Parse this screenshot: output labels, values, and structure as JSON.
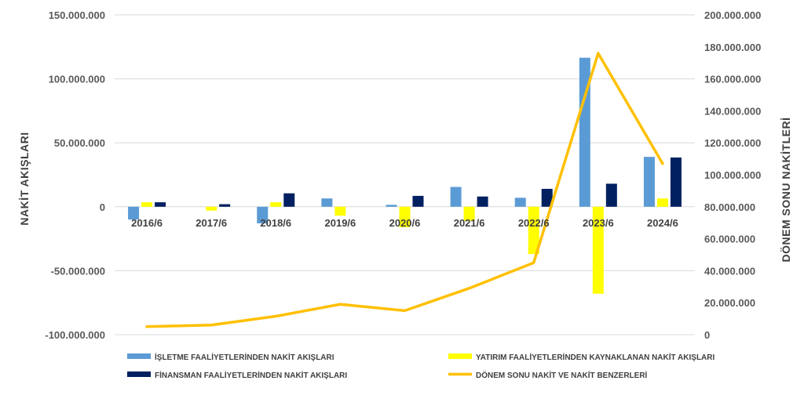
{
  "chart_data": {
    "type": "bar",
    "categories": [
      "2016/6",
      "2017/6",
      "2018/6",
      "2019/6",
      "2020/6",
      "2021/6",
      "2022/6",
      "2023/6",
      "2024/6"
    ],
    "series": [
      {
        "name": "İŞLETME FAALİYETLERİNDEN NAKİT AKIŞLARI",
        "axis": "left",
        "kind": "bar",
        "color": "#5B9BD5",
        "values": [
          -10000000,
          0,
          -13000000,
          6500000,
          1500000,
          15500000,
          7000000,
          116500000,
          39000000
        ]
      },
      {
        "name": "YATIRIM FAALİYETLERİNDEN KAYNAKLANAN NAKİT AKIŞLARI",
        "axis": "left",
        "kind": "bar",
        "color": "#FFFF00",
        "values": [
          3500000,
          -3000000,
          3500000,
          -7000000,
          -16000000,
          -11000000,
          -37000000,
          -68000000,
          6500000
        ]
      },
      {
        "name": "FİNANSMAN FAALİYETLERİNDEN NAKİT AKIŞLARI",
        "axis": "left",
        "kind": "bar",
        "color": "#002060",
        "values": [
          3500000,
          2000000,
          10500000,
          0,
          8500000,
          8000000,
          14000000,
          18000000,
          38500000
        ]
      },
      {
        "name": "DÖNEM SONU NAKİT VE NAKİT BENZERLERİ",
        "axis": "right",
        "kind": "line",
        "color": "#FFC000",
        "values": [
          5000000,
          6000000,
          11500000,
          19000000,
          15000000,
          29000000,
          45000000,
          176000000,
          107000000
        ]
      }
    ],
    "left_axis": {
      "title": "NAKİT AKIŞLARI",
      "min": -100000000,
      "max": 150000000,
      "ticks": [
        150000000,
        100000000,
        50000000,
        0,
        -50000000,
        -100000000
      ],
      "tick_labels": [
        "150.000.000",
        "100.000.000",
        "50.000.000",
        "0",
        "-50.000.000",
        "-100.000.000"
      ]
    },
    "right_axis": {
      "title": "DÖNEM SONU NAKİTLERİ",
      "min": 0,
      "max": 200000000,
      "ticks": [
        200000000,
        180000000,
        160000000,
        140000000,
        120000000,
        100000000,
        80000000,
        60000000,
        40000000,
        20000000,
        0
      ],
      "tick_labels": [
        "200.000.000",
        "180.000.000",
        "160.000.000",
        "140.000.000",
        "120.000.000",
        "100.000.000",
        "80.000.000",
        "60.000.000",
        "40.000.000",
        "20.000.000",
        "0"
      ]
    },
    "grid": true,
    "legend": "bottom"
  }
}
